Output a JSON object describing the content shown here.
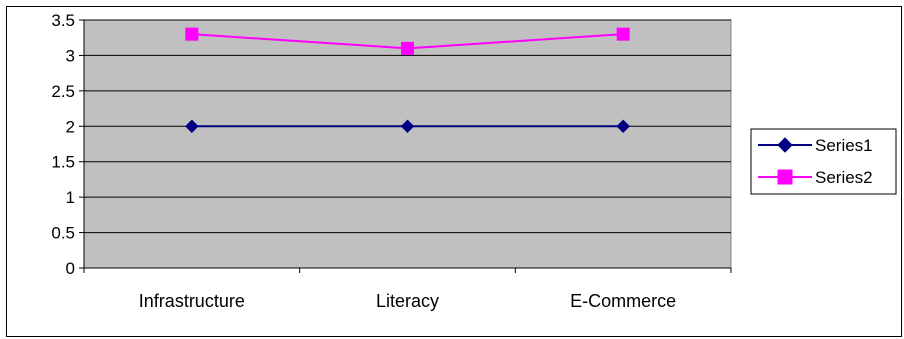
{
  "chart_data": {
    "type": "line",
    "categories": [
      "Infrastructure",
      "Literacy",
      "E-Commerce"
    ],
    "series": [
      {
        "name": "Series1",
        "values": [
          2,
          2,
          2
        ],
        "color": "#000080",
        "marker": "diamond"
      },
      {
        "name": "Series2",
        "values": [
          3.3,
          3.1,
          3.3
        ],
        "color": "#FF00FF",
        "marker": "square"
      }
    ],
    "yticks": [
      "0",
      "0.5",
      "1",
      "1.5",
      "2",
      "2.5",
      "3",
      "3.5"
    ],
    "ylim": [
      0,
      3.5
    ],
    "grid": true,
    "plot_background": "#C0C0C0",
    "legend_position": "right",
    "title": "",
    "xlabel": "",
    "ylabel": ""
  }
}
